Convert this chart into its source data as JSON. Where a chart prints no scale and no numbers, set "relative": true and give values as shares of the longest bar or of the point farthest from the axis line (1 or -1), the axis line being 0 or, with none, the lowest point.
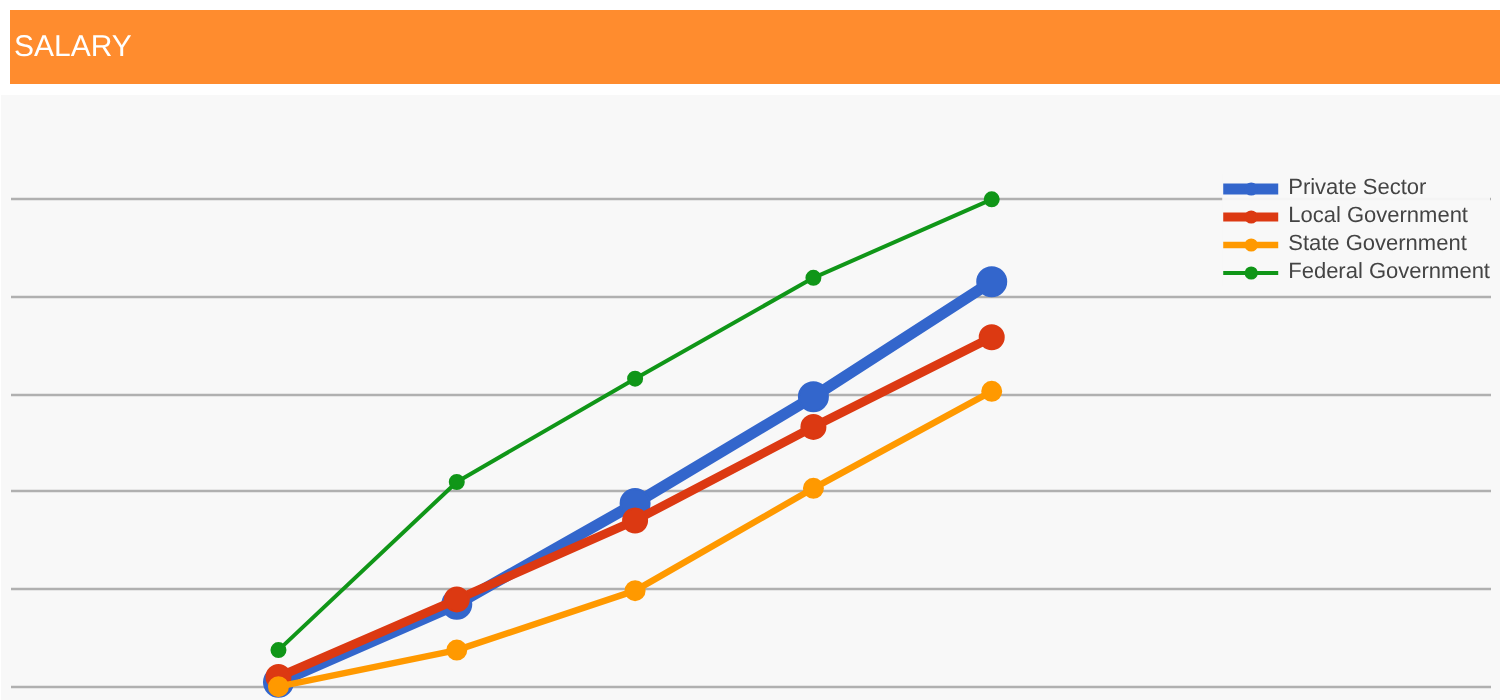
{
  "chart_data": {
    "type": "line",
    "title": "SALARY",
    "relative": true,
    "categories": [
      null,
      null,
      null,
      null,
      null
    ],
    "series": [
      {
        "name": "Private Sector",
        "color": "#3366cc",
        "values": [
          0.009,
          0.169,
          0.376,
          0.595,
          0.831
        ]
      },
      {
        "name": "Local Government",
        "color": "#dc3912",
        "values": [
          0.02,
          0.179,
          0.341,
          0.533,
          0.717
        ]
      },
      {
        "name": "State Government",
        "color": "#ff9900",
        "values": [
          0,
          0.075,
          0.197,
          0.407,
          0.606
        ]
      },
      {
        "name": "Federal Government",
        "color": "#109618",
        "values": [
          0.075,
          0.42,
          0.632,
          0.839,
          1
        ]
      }
    ],
    "grid": "y",
    "legend": "right",
    "marker": "circle",
    "tick_labels": false
  }
}
